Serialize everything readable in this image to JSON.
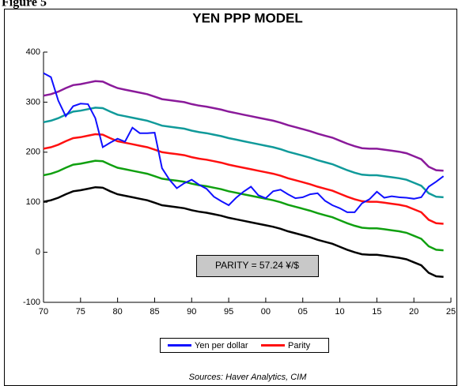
{
  "figure_label": "Figure 5",
  "chart_data": {
    "type": "line",
    "title": "YEN PPP MODEL",
    "annotation": "PARITY = 57.24 ¥/$",
    "source": "Sources:  Haver Analytics, CIM",
    "x": [
      1970,
      1971,
      1972,
      1973,
      1974,
      1975,
      1976,
      1977,
      1978,
      1979,
      1980,
      1981,
      1982,
      1983,
      1984,
      1985,
      1986,
      1987,
      1988,
      1989,
      1990,
      1991,
      1992,
      1993,
      1994,
      1995,
      1996,
      1997,
      1998,
      1999,
      2000,
      2001,
      2002,
      2003,
      2004,
      2005,
      2006,
      2007,
      2008,
      2009,
      2010,
      2011,
      2012,
      2013,
      2014,
      2015,
      2016,
      2017,
      2018,
      2019,
      2020,
      2021,
      2022,
      2023,
      2024
    ],
    "xlim": [
      1970,
      2025
    ],
    "xticks": [
      {
        "value": 1970,
        "label": "70"
      },
      {
        "value": 1975,
        "label": "75"
      },
      {
        "value": 1980,
        "label": "80"
      },
      {
        "value": 1985,
        "label": "85"
      },
      {
        "value": 1990,
        "label": "90"
      },
      {
        "value": 1995,
        "label": "95"
      },
      {
        "value": 2000,
        "label": "00"
      },
      {
        "value": 2005,
        "label": "05"
      },
      {
        "value": 2010,
        "label": "10"
      },
      {
        "value": 2015,
        "label": "15"
      },
      {
        "value": 2020,
        "label": "20"
      },
      {
        "value": 2025,
        "label": "25"
      }
    ],
    "ylim": [
      -100,
      400
    ],
    "yticks": [
      -100,
      0,
      100,
      200,
      300,
      400
    ],
    "series": [
      {
        "name": "Yen per dollar",
        "color": "#1010ff",
        "values": [
          358,
          350,
          303,
          272,
          292,
          297,
          296,
          268,
          210,
          219,
          227,
          221,
          249,
          238,
          238,
          239,
          168,
          145,
          128,
          138,
          145,
          135,
          127,
          111,
          102,
          94,
          109,
          121,
          131,
          114,
          108,
          122,
          125,
          116,
          108,
          110,
          116,
          118,
          103,
          94,
          88,
          80,
          80,
          98,
          106,
          121,
          109,
          112,
          110,
          109,
          107,
          110,
          131,
          141,
          152
        ]
      },
      {
        "name": "Parity",
        "color": "#ff1010",
        "values": [
          207,
          210,
          215,
          222,
          228,
          230,
          233,
          236,
          235,
          228,
          222,
          219,
          216,
          213,
          210,
          205,
          200,
          198,
          196,
          194,
          190,
          187,
          185,
          182,
          179,
          175,
          172,
          169,
          166,
          163,
          160,
          157,
          153,
          148,
          144,
          140,
          136,
          131,
          127,
          123,
          117,
          111,
          106,
          102,
          101,
          101,
          99,
          97,
          95,
          92,
          86,
          80,
          65,
          58,
          57
        ]
      },
      {
        "color": "#109a9a",
        "values": [
          260,
          263,
          268,
          275,
          281,
          283,
          286,
          289,
          288,
          281,
          275,
          272,
          269,
          266,
          263,
          258,
          253,
          251,
          249,
          247,
          243,
          240,
          238,
          235,
          232,
          228,
          225,
          222,
          219,
          216,
          213,
          210,
          206,
          201,
          197,
          193,
          189,
          184,
          180,
          176,
          170,
          164,
          159,
          155,
          154,
          154,
          152,
          150,
          148,
          145,
          139,
          133,
          118,
          111,
          110
        ]
      },
      {
        "color": "#8a1a9a",
        "values": [
          313,
          316,
          321,
          328,
          334,
          336,
          339,
          342,
          341,
          334,
          328,
          325,
          322,
          319,
          316,
          311,
          306,
          304,
          302,
          300,
          296,
          293,
          291,
          288,
          285,
          281,
          278,
          275,
          272,
          269,
          266,
          263,
          259,
          254,
          250,
          246,
          242,
          237,
          233,
          229,
          223,
          217,
          212,
          208,
          207,
          207,
          205,
          203,
          201,
          198,
          192,
          186,
          171,
          164,
          163
        ]
      },
      {
        "color": "#10a010",
        "values": [
          154,
          157,
          162,
          169,
          175,
          177,
          180,
          183,
          182,
          175,
          169,
          166,
          163,
          160,
          157,
          152,
          147,
          145,
          143,
          141,
          137,
          134,
          132,
          129,
          126,
          122,
          119,
          116,
          113,
          110,
          107,
          104,
          100,
          95,
          91,
          87,
          83,
          78,
          74,
          70,
          64,
          58,
          53,
          49,
          48,
          48,
          46,
          44,
          42,
          39,
          33,
          27,
          12,
          5,
          4
        ]
      },
      {
        "color": "#000000",
        "values": [
          101,
          104,
          109,
          116,
          122,
          124,
          127,
          130,
          129,
          122,
          116,
          113,
          110,
          107,
          104,
          99,
          94,
          92,
          90,
          88,
          84,
          81,
          79,
          76,
          73,
          69,
          66,
          63,
          60,
          57,
          54,
          51,
          47,
          42,
          38,
          34,
          30,
          25,
          21,
          17,
          11,
          5,
          0,
          -4,
          -5,
          -5,
          -7,
          -9,
          -11,
          -14,
          -20,
          -26,
          -41,
          -48,
          -49
        ]
      }
    ]
  }
}
